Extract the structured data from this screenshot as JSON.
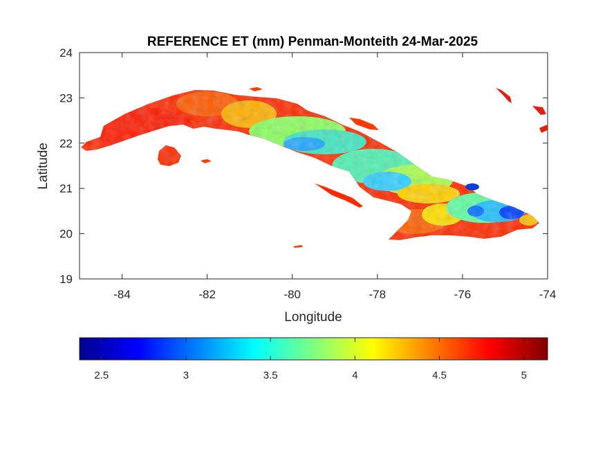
{
  "figure": {
    "title": "REFERENCE ET (mm) Penman-Monteith 24-Mar-2025",
    "xlabel": "Longitude",
    "ylabel": "Latitude"
  },
  "map": {
    "region": "Cuba",
    "xlim": [
      -85,
      -74
    ],
    "ylim": [
      19,
      24
    ],
    "xticks": [
      -84,
      -82,
      -80,
      -78,
      -76,
      -74
    ],
    "yticks": [
      19,
      20,
      21,
      22,
      23,
      24
    ],
    "xtick_labels": [
      "-84",
      "-82",
      "-80",
      "-78",
      "-76",
      "-74"
    ],
    "ytick_labels": [
      "19",
      "20",
      "21",
      "22",
      "23",
      "24"
    ]
  },
  "colorbar": {
    "colormap": "jet",
    "range": [
      2.37,
      5.14
    ],
    "ticks": [
      2.5,
      3,
      3.5,
      4,
      4.5,
      5
    ],
    "tick_labels": [
      "2.5",
      "3",
      "3.5",
      "4",
      "4.5",
      "5"
    ],
    "orientation": "horizontal",
    "placement": "below"
  },
  "chart_data": {
    "type": "heatmap",
    "title": "REFERENCE ET (mm) Penman-Monteith 24-Mar-2025",
    "xlabel": "Longitude",
    "ylabel": "Latitude",
    "xlim": [
      -85,
      -74
    ],
    "ylim": [
      19,
      24
    ],
    "value_range": [
      2.37,
      5.14
    ],
    "units": "mm",
    "colormap": "jet",
    "grid": false,
    "regions": [
      {
        "area": "far west (Pinar del Rio)",
        "value_approx": 4.9
      },
      {
        "area": "Isla de la Juventud",
        "value_approx": 4.6
      },
      {
        "area": "central (Matanzas - Villa Clara - Ciego)",
        "value_approx": 3.7
      },
      {
        "area": "central-east (Camaguey - Las Tunas)",
        "value_approx": 3.8
      },
      {
        "area": "southern coast (Gulf of Guacanayabo)",
        "value_approx": 4.8
      },
      {
        "area": "far east (Holguin - Guantanamo highlands)",
        "value_approx": 3.1
      },
      {
        "area": "northeast coast spot near -75.8, 21.0",
        "value_approx": 2.7
      }
    ]
  }
}
